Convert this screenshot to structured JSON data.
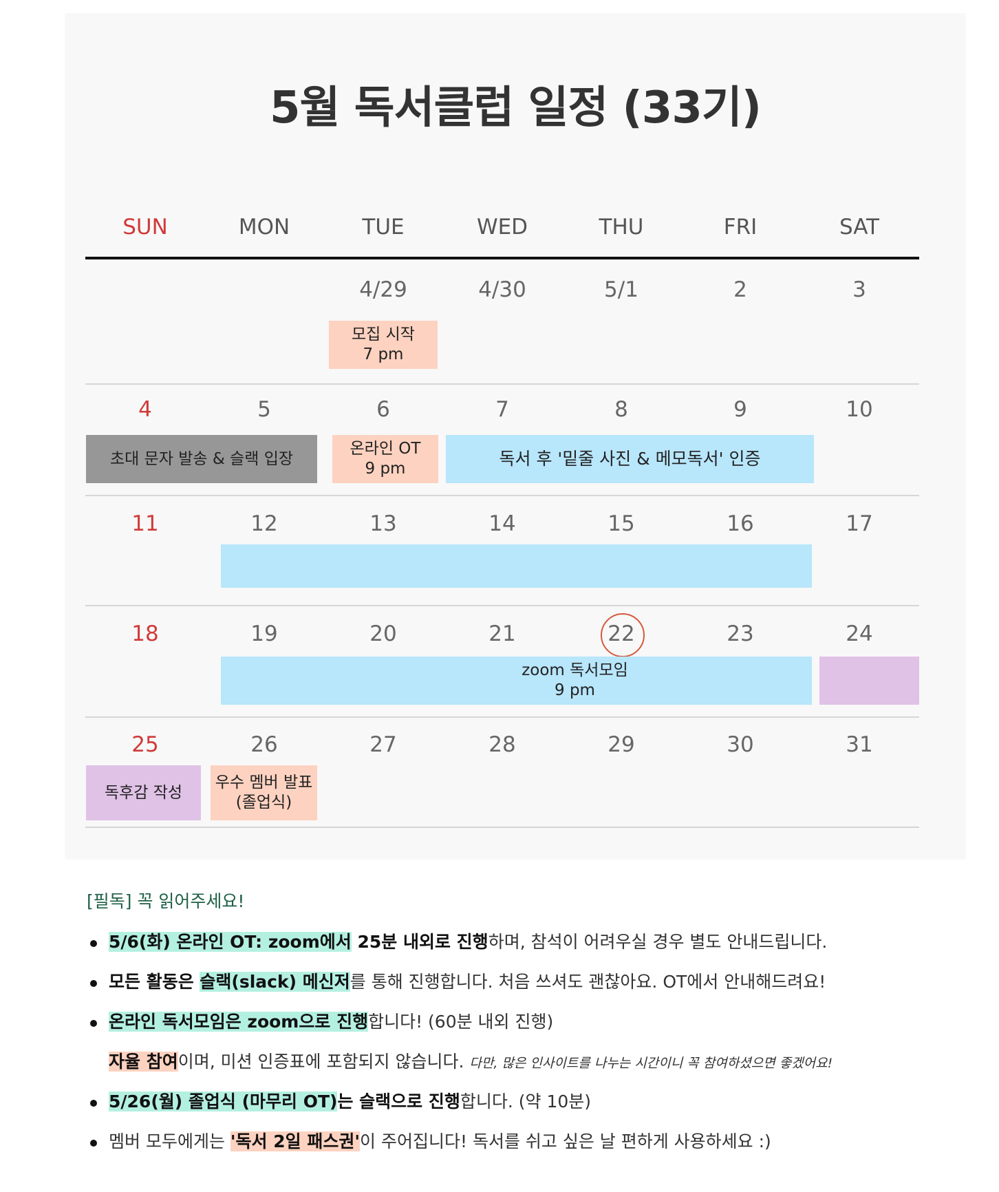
{
  "title": "5월 독서클럽 일정 (33기)",
  "weekdays": [
    "SUN",
    "MON",
    "TUE",
    "WED",
    "THU",
    "FRI",
    "SAT"
  ],
  "dates": [
    [
      "",
      "",
      "4/29",
      "4/30",
      "5/1",
      "2",
      "3"
    ],
    [
      "4",
      "5",
      "6",
      "7",
      "8",
      "9",
      "10"
    ],
    [
      "11",
      "12",
      "13",
      "14",
      "15",
      "16",
      "17"
    ],
    [
      "18",
      "19",
      "20",
      "21",
      "22",
      "23",
      "24"
    ],
    [
      "25",
      "26",
      "27",
      "28",
      "29",
      "30",
      "31"
    ]
  ],
  "highlighted_date": "22",
  "events": {
    "recruit": {
      "line1": "모집 시작",
      "line2": "7 pm"
    },
    "invite": {
      "line1": "초대 문자 발송 & 슬랙 입장"
    },
    "online_ot": {
      "line1": "온라인 OT",
      "line2": "9 pm"
    },
    "reading_cert": {
      "line1": "독서 후 '밑줄 사진 & 메모독서' 인증"
    },
    "zoom_meeting": {
      "line1": "zoom 독서모임",
      "line2": "9 pm"
    },
    "review": {
      "line1": "독후감 작성"
    },
    "graduation": {
      "line1": "우수 멤버 발표",
      "line2": "(졸업식)"
    }
  },
  "colors": {
    "salmon": "#fdd2c0",
    "gray": "#979797",
    "blue": "#b8e6fb",
    "purple": "#e0c2e6",
    "sunday_red": "#d03a3a"
  },
  "notes": {
    "title": "[필독] 꼭 읽어주세요!",
    "n1": {
      "hl": "5/6(화) 온라인 OT: zoom에서",
      "bold": " 25분 내외로 진행",
      "rest": "하며, 참석이 어려우실 경우 별도 안내드립니다."
    },
    "n2": {
      "bold": "모든 활동은 ",
      "hl": "슬랙(slack) 메신저",
      "rest": "를 통해 진행합니다. 처음 쓰셔도 괜찮아요. OT에서 안내해드려요!"
    },
    "n3": {
      "hl": "온라인 독서모임은 zoom으로 진행",
      "rest": "합니다! (60분 내외 진행)"
    },
    "n3b": {
      "hl": "자율 참여",
      "rest": "이며, 미션 인증표에 포함되지 않습니다. ",
      "small": "다만, 많은 인사이트를 나누는 시간이니 꼭 참여하셨으면 좋겠어요!"
    },
    "n4": {
      "hl": "5/26(월) 졸업식 (마무리 OT)",
      "bold": "는 슬랙으로 진행",
      "rest": "합니다. (약 10분)"
    },
    "n5": {
      "pre": "멤버 모두에게는 ",
      "hl": "'독서 2일 패스권'",
      "rest": "이 주어집니다! 독서를 쉬고 싶은 날 편하게 사용하세요 :)"
    }
  }
}
